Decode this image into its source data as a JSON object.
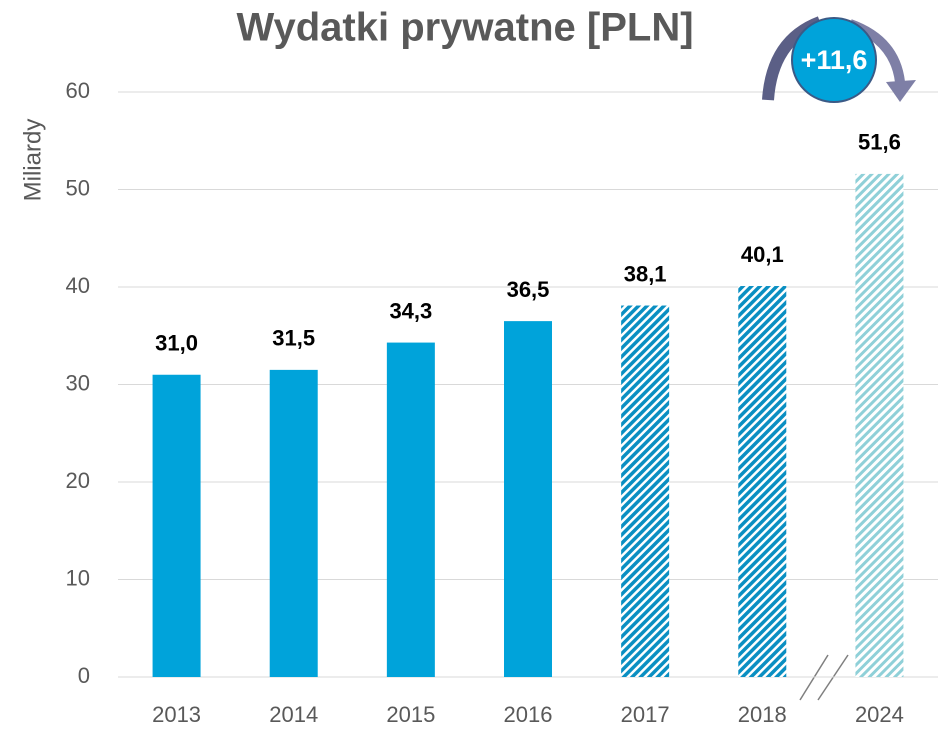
{
  "chart_data": {
    "type": "bar",
    "title": "Wydatki prywatne [PLN]",
    "ylabel": "Miliardy",
    "categories": [
      "2013",
      "2014",
      "2015",
      "2016",
      "2017",
      "2018",
      "2024"
    ],
    "values": [
      31.0,
      31.5,
      34.3,
      36.5,
      38.1,
      40.1,
      51.6
    ],
    "value_labels": [
      "31,0",
      "31,5",
      "34,3",
      "36,5",
      "38,1",
      "40,1",
      "51,6"
    ],
    "color": "#00a3da",
    "bar_fills": [
      "solid",
      "solid",
      "solid",
      "solid",
      "hatched",
      "hatched",
      "light-hatched"
    ],
    "ylim": [
      0,
      60
    ],
    "yticks": [
      0,
      10,
      20,
      30,
      40,
      50,
      60
    ],
    "grid": true,
    "annotation": "+11,6"
  }
}
